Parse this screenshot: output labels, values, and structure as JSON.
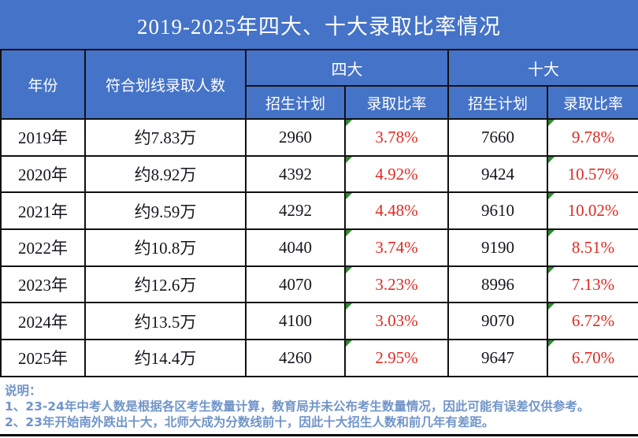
{
  "chart_data": {
    "type": "table",
    "title": "2019-2025年四大、十大录取比率情况",
    "column_groups": [
      {
        "label": "四大",
        "span": 2
      },
      {
        "label": "十大",
        "span": 2
      }
    ],
    "columns": [
      "年份",
      "符合划线录取人数",
      "招生计划",
      "录取比率",
      "招生计划",
      "录取比率"
    ],
    "rows": [
      [
        "2019年",
        "约7.83万",
        "2960",
        "3.78%",
        "7660",
        "9.78%"
      ],
      [
        "2020年",
        "约8.92万",
        "4392",
        "4.92%",
        "9424",
        "10.57%"
      ],
      [
        "2021年",
        "约9.59万",
        "4292",
        "4.48%",
        "9610",
        "10.02%"
      ],
      [
        "2022年",
        "约10.8万",
        "4040",
        "3.74%",
        "9190",
        "8.51%"
      ],
      [
        "2023年",
        "约12.6万",
        "4070",
        "3.23%",
        "8996",
        "7.13%"
      ],
      [
        "2024年",
        "约13.5万",
        "4100",
        "3.03%",
        "9070",
        "6.72%"
      ],
      [
        "2025年",
        "约14.4万",
        "4260",
        "2.95%",
        "9647",
        "6.70%"
      ]
    ]
  },
  "notes": {
    "heading": "说明：",
    "items": [
      "1、23-24年中考人数是根据各区考生数量计算，教育局并未公布考生数量情况，因此可能有误差仅供参考。",
      "2、23年开始南外跌出十大，北师大成为分数线前十，因此十大招生人数和前几年有差距。"
    ]
  },
  "colors": {
    "header_blue": "#4573c8",
    "rate_red": "#e02a22",
    "note_blue": "#7094c9",
    "triangle_green": "#2e8b2e"
  }
}
